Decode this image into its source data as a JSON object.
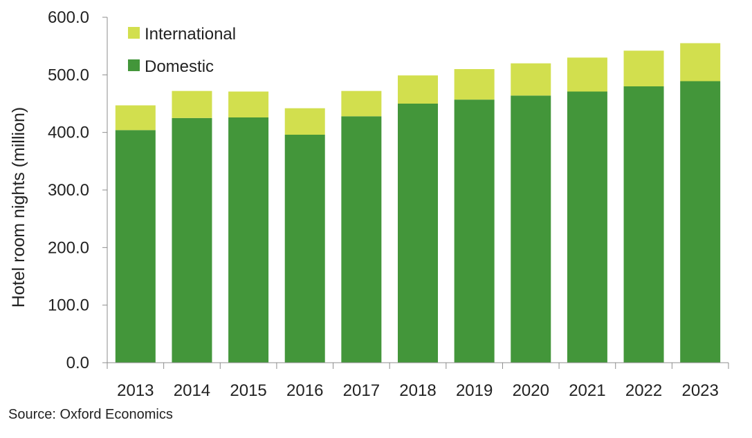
{
  "chart_data": {
    "type": "bar",
    "stacked": true,
    "ylabel": "Hotel room nights (million)",
    "ylim": [
      0,
      600
    ],
    "yticks": [
      "0.0",
      "100.0",
      "200.0",
      "300.0",
      "400.0",
      "500.0",
      "600.0"
    ],
    "categories": [
      "2013",
      "2014",
      "2015",
      "2016",
      "2017",
      "2018",
      "2019",
      "2020",
      "2021",
      "2022",
      "2023"
    ],
    "series": [
      {
        "name": "Domestic",
        "color": "#43963a",
        "values": [
          404,
          425,
          426,
          396,
          428,
          450,
          457,
          464,
          471,
          480,
          489
        ]
      },
      {
        "name": "International",
        "color": "#d2df4e",
        "values": [
          43,
          47,
          45,
          46,
          44,
          49,
          53,
          56,
          59,
          62,
          66
        ]
      }
    ],
    "legend": {
      "placement": "top-left",
      "order": [
        "International",
        "Domestic"
      ]
    },
    "grid": false
  },
  "footer": {
    "source": "Source: Oxford Economics"
  }
}
